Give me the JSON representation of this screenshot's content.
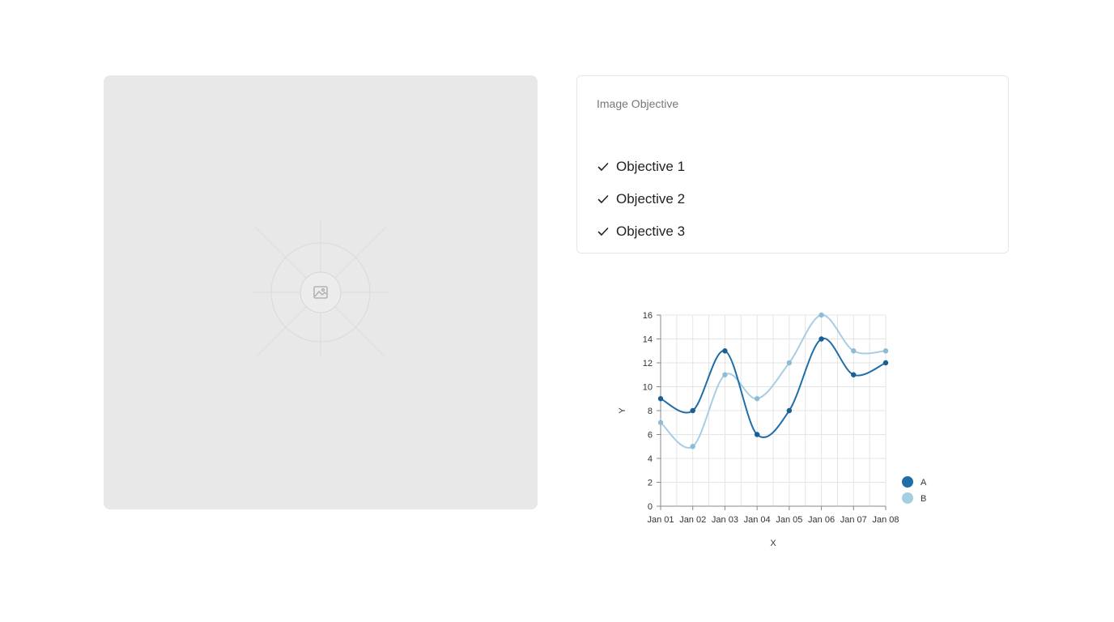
{
  "objective_card": {
    "title": "Image Objective",
    "items": [
      {
        "label": "Objective 1",
        "icon": "check-icon"
      },
      {
        "label": "Objective 2",
        "icon": "check-icon"
      },
      {
        "label": "Objective 3",
        "icon": "check-icon"
      }
    ]
  },
  "image_placeholder": {
    "icon": "image-icon"
  },
  "chart_data": {
    "type": "line",
    "categories": [
      "Jan 01",
      "Jan 02",
      "Jan 03",
      "Jan 04",
      "Jan 05",
      "Jan 06",
      "Jan 07",
      "Jan 08"
    ],
    "series": [
      {
        "name": "A",
        "values": [
          9,
          8,
          13,
          6,
          8,
          14,
          11,
          12
        ],
        "color": "#1f6ea8"
      },
      {
        "name": "B",
        "values": [
          7,
          5,
          11,
          9,
          12,
          16,
          13,
          13
        ],
        "color": "#a6cee3"
      }
    ],
    "title": "",
    "xlabel": "X",
    "ylabel": "Y",
    "ylim": [
      0,
      16
    ],
    "yticks": [
      0,
      2,
      4,
      6,
      8,
      10,
      12,
      14,
      16
    ],
    "grid": true,
    "legend_position": "bottom-right"
  }
}
